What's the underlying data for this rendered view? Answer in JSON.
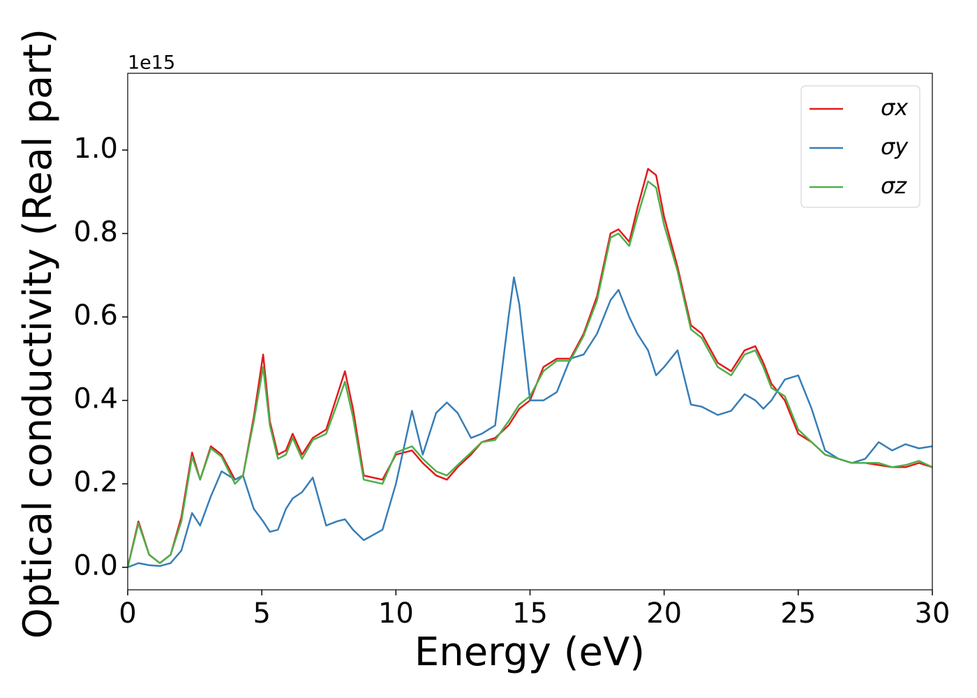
{
  "chart_data": {
    "type": "line",
    "xlabel": "Energy (eV)",
    "ylabel": "Optical conductivity (Real part)",
    "y_offset_label": "1e15",
    "x": [
      0,
      0.4,
      0.8,
      1.2,
      1.6,
      2.0,
      2.4,
      2.7,
      3.1,
      3.5,
      4.0,
      4.3,
      4.7,
      5.05,
      5.3,
      5.6,
      5.9,
      6.15,
      6.5,
      6.9,
      7.4,
      7.8,
      8.1,
      8.4,
      8.8,
      9.5,
      10.0,
      10.6,
      11.0,
      11.5,
      11.9,
      12.3,
      12.8,
      13.2,
      13.7,
      14.2,
      14.4,
      14.6,
      15.0,
      15.5,
      16.0,
      16.5,
      17.0,
      17.5,
      18.0,
      18.3,
      18.7,
      19.0,
      19.4,
      19.7,
      20.0,
      20.5,
      21.0,
      21.4,
      22.0,
      22.5,
      23.0,
      23.4,
      23.7,
      24.0,
      24.5,
      25.0,
      25.5,
      26.0,
      26.5,
      27.0,
      27.5,
      28.0,
      28.5,
      29.0,
      29.5,
      30.0
    ],
    "series": [
      {
        "name": "σx",
        "color": "#e41a1c",
        "values": [
          0,
          0.11,
          0.03,
          0.01,
          0.03,
          0.12,
          0.275,
          0.21,
          0.29,
          0.27,
          0.21,
          0.22,
          0.36,
          0.51,
          0.35,
          0.27,
          0.28,
          0.32,
          0.27,
          0.31,
          0.33,
          0.41,
          0.47,
          0.38,
          0.22,
          0.21,
          0.27,
          0.28,
          0.25,
          0.22,
          0.21,
          0.24,
          0.27,
          0.3,
          0.31,
          0.34,
          0.36,
          0.38,
          0.4,
          0.48,
          0.5,
          0.5,
          0.56,
          0.65,
          0.8,
          0.81,
          0.78,
          0.86,
          0.955,
          0.94,
          0.84,
          0.72,
          0.58,
          0.56,
          0.49,
          0.47,
          0.52,
          0.53,
          0.49,
          0.44,
          0.4,
          0.32,
          0.3,
          0.27,
          0.26,
          0.25,
          0.25,
          0.245,
          0.24,
          0.24,
          0.25,
          0.24
        ]
      },
      {
        "name": "σy",
        "color": "#377eb8",
        "values": [
          0,
          0.01,
          0.005,
          0.003,
          0.01,
          0.04,
          0.13,
          0.1,
          0.17,
          0.23,
          0.21,
          0.22,
          0.14,
          0.11,
          0.085,
          0.09,
          0.14,
          0.165,
          0.18,
          0.215,
          0.1,
          0.11,
          0.115,
          0.09,
          0.065,
          0.09,
          0.2,
          0.375,
          0.27,
          0.37,
          0.395,
          0.37,
          0.31,
          0.32,
          0.34,
          0.6,
          0.695,
          0.63,
          0.4,
          0.4,
          0.42,
          0.5,
          0.51,
          0.56,
          0.64,
          0.665,
          0.6,
          0.56,
          0.52,
          0.46,
          0.48,
          0.52,
          0.39,
          0.385,
          0.365,
          0.375,
          0.415,
          0.4,
          0.38,
          0.4,
          0.45,
          0.46,
          0.38,
          0.28,
          0.26,
          0.25,
          0.26,
          0.3,
          0.28,
          0.295,
          0.285,
          0.29
        ]
      },
      {
        "name": "σz",
        "color": "#4daf4a",
        "values": [
          0,
          0.105,
          0.03,
          0.01,
          0.03,
          0.11,
          0.265,
          0.21,
          0.285,
          0.265,
          0.2,
          0.22,
          0.35,
          0.48,
          0.34,
          0.26,
          0.27,
          0.31,
          0.26,
          0.305,
          0.32,
          0.39,
          0.445,
          0.36,
          0.21,
          0.2,
          0.275,
          0.29,
          0.26,
          0.23,
          0.22,
          0.245,
          0.275,
          0.3,
          0.305,
          0.35,
          0.37,
          0.39,
          0.41,
          0.47,
          0.495,
          0.495,
          0.555,
          0.64,
          0.79,
          0.8,
          0.77,
          0.84,
          0.925,
          0.91,
          0.82,
          0.71,
          0.57,
          0.55,
          0.48,
          0.46,
          0.51,
          0.52,
          0.48,
          0.43,
          0.41,
          0.33,
          0.3,
          0.27,
          0.26,
          0.25,
          0.25,
          0.25,
          0.24,
          0.245,
          0.255,
          0.24
        ]
      }
    ],
    "xlim": [
      0,
      30
    ],
    "xticks": [
      0,
      5,
      10,
      15,
      20,
      25,
      30
    ],
    "ylim": [
      -0.054,
      1.184
    ],
    "yticks": [
      {
        "value": 0,
        "label": "0.0"
      },
      {
        "value": 0.2,
        "label": "0.2"
      },
      {
        "value": 0.4,
        "label": "0.4"
      },
      {
        "value": 0.6,
        "label": "0.6"
      },
      {
        "value": 0.8,
        "label": "0.8"
      },
      {
        "value": 1.0,
        "label": "1.0"
      }
    ],
    "legend": "upper right",
    "grid": false
  }
}
